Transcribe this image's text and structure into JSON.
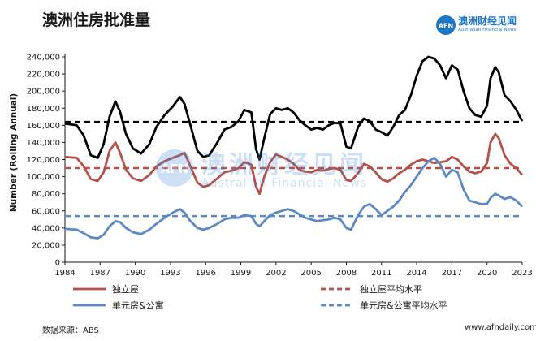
{
  "title": "澳洲住房批准量",
  "logo": {
    "name": "澳洲财经见闻",
    "subtitle": "Australian Financial News",
    "mark": "AFN"
  },
  "watermark": {
    "name": "澳洲财经见闻",
    "subtitle": "Australian Financial News"
  },
  "footer": {
    "source": "数据来源：ABS",
    "site": "www.afndaily.com"
  },
  "colors": {
    "houses": "#b5504a",
    "units": "#5b8ac6",
    "average": "#000000"
  },
  "chart_data": {
    "type": "line",
    "ylabel": "Number (Rolling Annual)",
    "xlim": [
      1984,
      2023
    ],
    "ylim": [
      0,
      240000
    ],
    "yticks": [
      0,
      20000,
      40000,
      60000,
      80000,
      100000,
      120000,
      140000,
      160000,
      180000,
      200000,
      220000,
      240000
    ],
    "ytick_labels": [
      "0",
      "20,000",
      "40,000",
      "60,000",
      "80,000",
      "100,000",
      "120,000",
      "140,000",
      "160,000",
      "180,000",
      "200,000",
      "220,000",
      "240,000"
    ],
    "xticks": [
      1984,
      1987,
      1990,
      1993,
      1996,
      1999,
      2002,
      2005,
      2008,
      2011,
      2014,
      2017,
      2020,
      2023
    ],
    "xtick_labels": [
      "1984",
      "1987",
      "1990",
      "1993",
      "1996",
      "1999",
      "2002",
      "2005",
      "2008",
      "2011",
      "2014",
      "2017",
      "2020",
      "2023"
    ],
    "grid": false,
    "legend": "bottom",
    "series": [
      {
        "name": "",
        "style": "solid",
        "color": "#000000",
        "x": [
          1984,
          1985,
          1985.6,
          1986.2,
          1986.8,
          1987.3,
          1987.8,
          1988.3,
          1988.7,
          1989.2,
          1989.8,
          1990.5,
          1991.2,
          1991.8,
          1992.5,
          1993.2,
          1993.8,
          1994.2,
          1994.7,
          1995.3,
          1995.8,
          1996.3,
          1997,
          1997.6,
          1998.2,
          1998.8,
          1999.3,
          1999.9,
          2000.3,
          2000.6,
          2001,
          2001.5,
          2002,
          2002.5,
          2003,
          2003.5,
          2004,
          2004.5,
          2005,
          2005.5,
          2006,
          2006.5,
          2007,
          2007.5,
          2008,
          2008.4,
          2009,
          2009.5,
          2010,
          2010.5,
          2011,
          2011.5,
          2012,
          2012.5,
          2013,
          2013.5,
          2014,
          2014.5,
          2015,
          2015.5,
          2016,
          2016.5,
          2017,
          2017.5,
          2018,
          2018.5,
          2019,
          2019.5,
          2020,
          2020.3,
          2020.7,
          2021,
          2021.5,
          2022,
          2022.5,
          2023
        ],
        "values": [
          162000,
          160000,
          148000,
          125000,
          122000,
          138000,
          170000,
          188000,
          176000,
          150000,
          133000,
          127000,
          138000,
          158000,
          172000,
          182000,
          193000,
          185000,
          160000,
          130000,
          123000,
          125000,
          140000,
          155000,
          158000,
          165000,
          178000,
          175000,
          132000,
          120000,
          145000,
          173000,
          180000,
          178000,
          180000,
          175000,
          166000,
          160000,
          155000,
          157000,
          155000,
          160000,
          163000,
          162000,
          135000,
          133000,
          158000,
          168000,
          165000,
          155000,
          152000,
          148000,
          158000,
          172000,
          178000,
          195000,
          218000,
          235000,
          240000,
          238000,
          230000,
          215000,
          230000,
          225000,
          200000,
          180000,
          172000,
          170000,
          183000,
          215000,
          228000,
          222000,
          195000,
          188000,
          178000,
          165000
        ]
      },
      {
        "name": "",
        "style": "dashed",
        "color": "#000000",
        "x": [
          1984,
          2023
        ],
        "values": [
          164000,
          164000
        ]
      },
      {
        "name": "独立屋",
        "style": "solid",
        "color": "#b5504a",
        "x": [
          1984,
          1985,
          1985.6,
          1986.2,
          1986.8,
          1987.3,
          1987.8,
          1988.3,
          1988.7,
          1989.2,
          1989.8,
          1990.5,
          1991.2,
          1991.8,
          1992.5,
          1993.2,
          1993.8,
          1994.2,
          1994.7,
          1995.3,
          1995.8,
          1996.3,
          1997,
          1997.6,
          1998.2,
          1998.8,
          1999.3,
          1999.9,
          2000.3,
          2000.6,
          2001,
          2001.5,
          2002,
          2002.5,
          2003,
          2003.5,
          2004,
          2004.5,
          2005,
          2005.5,
          2006,
          2006.5,
          2007,
          2007.5,
          2008,
          2008.4,
          2009,
          2009.5,
          2010,
          2010.5,
          2011,
          2011.5,
          2012,
          2012.5,
          2013,
          2013.5,
          2014,
          2014.5,
          2015,
          2015.5,
          2016,
          2016.5,
          2017,
          2017.5,
          2018,
          2018.5,
          2019,
          2019.5,
          2020,
          2020.3,
          2020.7,
          2021,
          2021.5,
          2022,
          2022.5,
          2023
        ],
        "values": [
          123000,
          122000,
          112000,
          97000,
          95000,
          105000,
          130000,
          140000,
          128000,
          108000,
          98000,
          95000,
          102000,
          112000,
          118000,
          122000,
          125000,
          128000,
          112000,
          93000,
          88000,
          90000,
          98000,
          105000,
          107000,
          110000,
          117000,
          114000,
          88000,
          80000,
          100000,
          117000,
          126000,
          123000,
          120000,
          115000,
          108000,
          106000,
          105000,
          108000,
          107000,
          109000,
          110000,
          108000,
          96000,
          95000,
          104000,
          115000,
          112000,
          105000,
          97000,
          94000,
          98000,
          104000,
          108000,
          114000,
          118000,
          120000,
          118000,
          116000,
          117000,
          118000,
          123000,
          120000,
          112000,
          106000,
          104000,
          106000,
          116000,
          140000,
          150000,
          145000,
          125000,
          115000,
          110000,
          102000
        ]
      },
      {
        "name": "独立屋平均水平",
        "style": "dashed",
        "color": "#b5504a",
        "x": [
          1984,
          2023
        ],
        "values": [
          110000,
          110000
        ]
      },
      {
        "name": "单元房&公寓",
        "style": "solid",
        "color": "#5b8ac6",
        "x": [
          1984,
          1985,
          1985.6,
          1986.2,
          1986.8,
          1987.3,
          1987.8,
          1988.3,
          1988.7,
          1989.2,
          1989.8,
          1990.5,
          1991.2,
          1991.8,
          1992.5,
          1993.2,
          1993.8,
          1994.2,
          1994.7,
          1995.3,
          1995.8,
          1996.3,
          1997,
          1997.6,
          1998.2,
          1998.8,
          1999.3,
          1999.9,
          2000.3,
          2000.6,
          2001,
          2001.5,
          2002,
          2002.5,
          2003,
          2003.5,
          2004,
          2004.5,
          2005,
          2005.5,
          2006,
          2006.5,
          2007,
          2007.5,
          2008,
          2008.4,
          2009,
          2009.5,
          2010,
          2010.5,
          2011,
          2011.5,
          2012,
          2012.5,
          2013,
          2013.5,
          2014,
          2014.5,
          2015,
          2015.5,
          2016,
          2016.5,
          2017,
          2017.5,
          2018,
          2018.5,
          2019,
          2019.5,
          2020,
          2020.3,
          2020.7,
          2021,
          2021.5,
          2022,
          2022.5,
          2023
        ],
        "values": [
          39000,
          38000,
          34000,
          29000,
          28000,
          32000,
          42000,
          48000,
          47000,
          40000,
          35000,
          33000,
          38000,
          45000,
          52000,
          58000,
          62000,
          58000,
          48000,
          40000,
          38000,
          40000,
          45000,
          50000,
          52000,
          52000,
          55000,
          54000,
          45000,
          42000,
          48000,
          55000,
          58000,
          60000,
          62000,
          60000,
          56000,
          52000,
          50000,
          48000,
          49000,
          50000,
          52000,
          50000,
          40000,
          38000,
          55000,
          65000,
          68000,
          62000,
          55000,
          60000,
          65000,
          72000,
          82000,
          90000,
          100000,
          110000,
          118000,
          122000,
          115000,
          100000,
          108000,
          105000,
          85000,
          72000,
          70000,
          68000,
          68000,
          75000,
          80000,
          78000,
          74000,
          76000,
          72000,
          65000
        ]
      },
      {
        "name": "单元房&公寓平均水平",
        "style": "dashed",
        "color": "#5b8ac6",
        "x": [
          1984,
          2023
        ],
        "values": [
          54000,
          54000
        ]
      }
    ]
  }
}
